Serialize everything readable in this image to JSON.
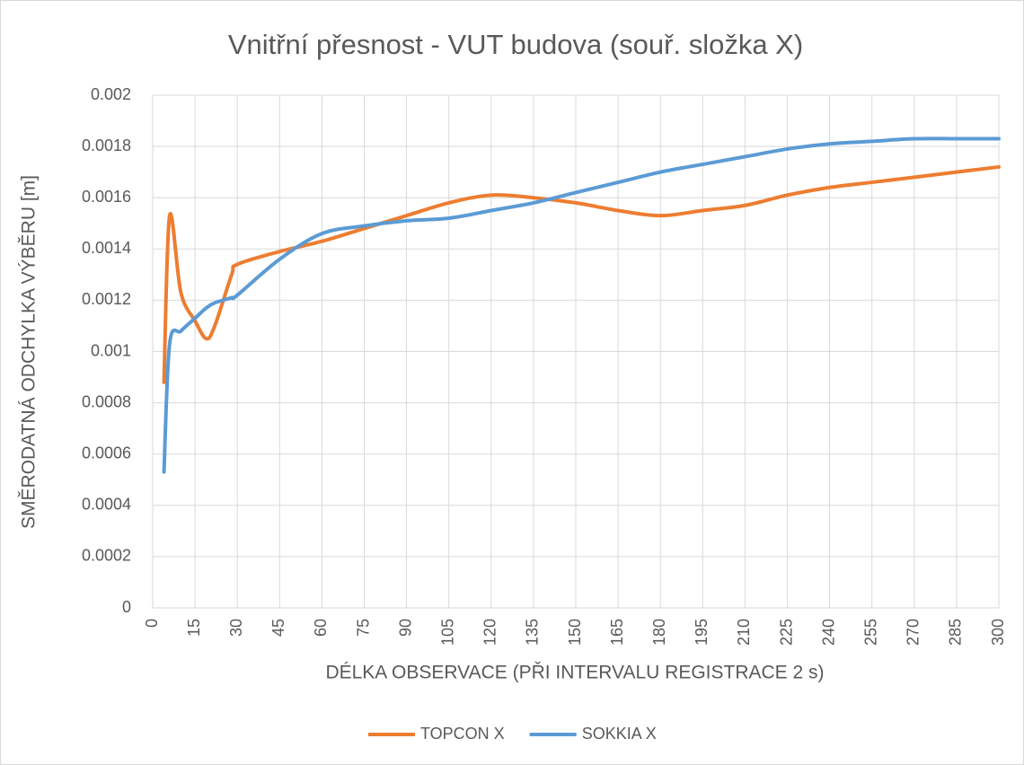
{
  "chart_data": {
    "type": "line",
    "smooth": true,
    "title": "Vnitřní přesnost - VUT budova (souř. složka X)",
    "x_label": "DÉLKA OBSERVACE (PŘI INTERVALU REGISTRACE 2 s)",
    "y_label": "SMĚRODATNÁ ODCHYLKA VÝBĚRU [m]",
    "x": [
      4,
      6,
      10,
      15,
      19,
      22,
      28,
      30,
      45,
      60,
      75,
      90,
      105,
      120,
      135,
      150,
      165,
      180,
      195,
      210,
      225,
      240,
      255,
      270,
      285,
      300
    ],
    "series": [
      {
        "name": "TOPCON X",
        "color": "#ed7d31",
        "values": [
          0.00088,
          0.00153,
          0.00123,
          0.00112,
          0.00105,
          0.0011,
          0.0013,
          0.00134,
          0.00139,
          0.00143,
          0.00148,
          0.00153,
          0.00158,
          0.00161,
          0.0016,
          0.00158,
          0.00155,
          0.00153,
          0.00155,
          0.00157,
          0.00161,
          0.00164,
          0.00166,
          0.00168,
          0.0017,
          0.00172
        ]
      },
      {
        "name": "SOKKIA X",
        "color": "#5b9bd5",
        "values": [
          0.00053,
          0.00103,
          0.00108,
          0.00113,
          0.00117,
          0.00119,
          0.00121,
          0.00122,
          0.00136,
          0.00146,
          0.00149,
          0.00151,
          0.00152,
          0.00155,
          0.00158,
          0.00162,
          0.00166,
          0.0017,
          0.00173,
          0.00176,
          0.00179,
          0.00181,
          0.00182,
          0.00183,
          0.00183,
          0.00183
        ]
      }
    ],
    "xlim": [
      0,
      300
    ],
    "xticks": [
      0,
      15,
      30,
      45,
      60,
      75,
      90,
      105,
      120,
      135,
      150,
      165,
      180,
      195,
      210,
      225,
      240,
      255,
      270,
      285,
      300
    ],
    "ylim": [
      0,
      0.002
    ],
    "yticks": [
      0,
      0.0002,
      0.0004,
      0.0006,
      0.0008,
      0.001,
      0.0012,
      0.0014,
      0.0016,
      0.0018,
      0.002
    ],
    "grid": true,
    "legend": "bottom"
  }
}
